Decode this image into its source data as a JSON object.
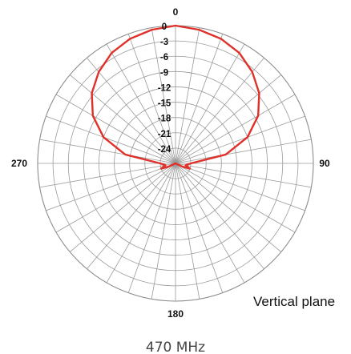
{
  "chart_data": {
    "type": "polar",
    "annotation": "Vertical plane",
    "caption": "470 MHz",
    "radial_axis": {
      "unit": "dB",
      "min": -27,
      "max": 0,
      "tick_labels": [
        "0",
        "-3",
        "-6",
        "-9",
        "-12",
        "-15",
        "-18",
        "-21",
        "-24"
      ],
      "tick_values": [
        0,
        -3,
        -6,
        -9,
        -12,
        -15,
        -18,
        -21,
        -24
      ]
    },
    "angular_axis": {
      "unit": "deg",
      "direction": "clockwise",
      "zero_at": "top",
      "labels": [
        {
          "angle": 0,
          "text": "0"
        },
        {
          "angle": 90,
          "text": "90"
        },
        {
          "angle": 180,
          "text": "180"
        },
        {
          "angle": 270,
          "text": "270"
        }
      ],
      "spoke_step_deg": 10
    },
    "grid": true,
    "series": [
      {
        "color": "#e0302a",
        "points": [
          {
            "angle": 0,
            "db": 0
          },
          {
            "angle": 10,
            "db": -0.4
          },
          {
            "angle": 20,
            "db": -1.0
          },
          {
            "angle": 30,
            "db": -2.0
          },
          {
            "angle": 40,
            "db": -3.6
          },
          {
            "angle": 50,
            "db": -5.6
          },
          {
            "angle": 60,
            "db": -8.3
          },
          {
            "angle": 70,
            "db": -12.0
          },
          {
            "angle": 80,
            "db": -17.0
          },
          {
            "angle": 90,
            "db": -24.0
          },
          {
            "angle": 100,
            "db": -25.0
          },
          {
            "angle": 110,
            "db": -24.0
          },
          {
            "angle": 115,
            "db": -25.5
          },
          {
            "angle": 125,
            "db": -27.0
          },
          {
            "angle": 180,
            "db": -27.0
          },
          {
            "angle": 235,
            "db": -27.0
          },
          {
            "angle": 245,
            "db": -25.5
          },
          {
            "angle": 250,
            "db": -24.0
          },
          {
            "angle": 260,
            "db": -25.0
          },
          {
            "angle": 270,
            "db": -24.0
          },
          {
            "angle": 280,
            "db": -17.0
          },
          {
            "angle": 290,
            "db": -12.0
          },
          {
            "angle": 300,
            "db": -8.3
          },
          {
            "angle": 310,
            "db": -5.6
          },
          {
            "angle": 320,
            "db": -3.6
          },
          {
            "angle": 330,
            "db": -2.0
          },
          {
            "angle": 340,
            "db": -1.0
          },
          {
            "angle": 350,
            "db": -0.4
          },
          {
            "angle": 360,
            "db": 0
          }
        ]
      }
    ]
  }
}
